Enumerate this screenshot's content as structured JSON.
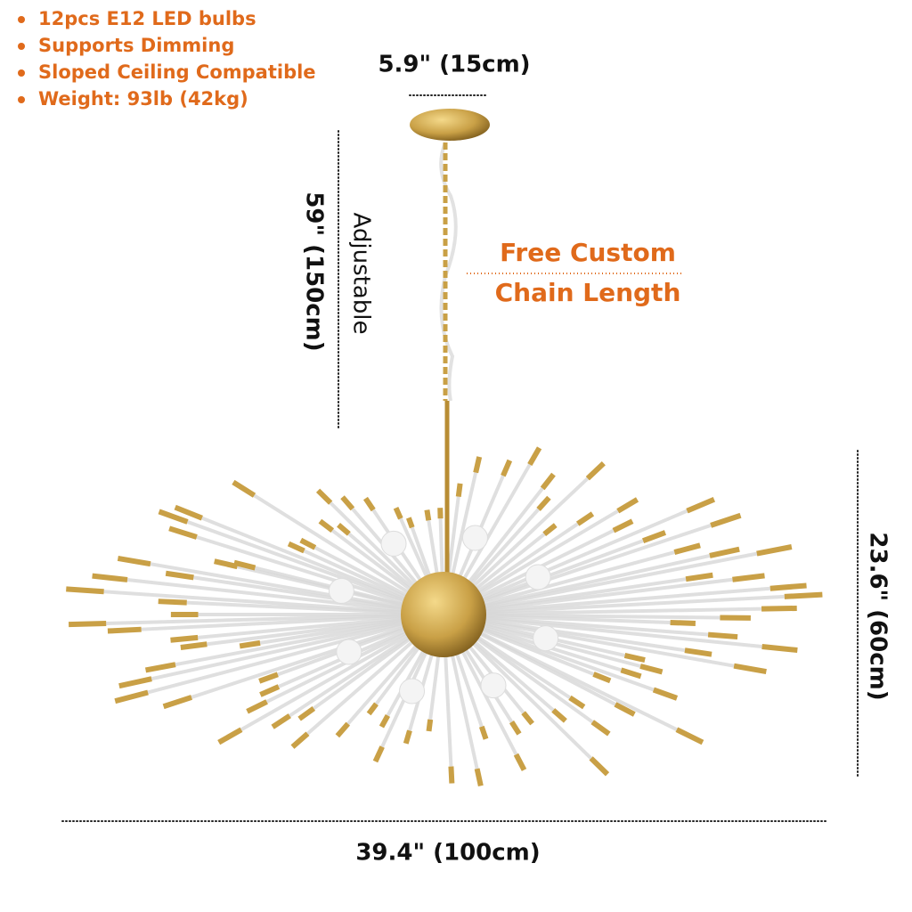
{
  "features": [
    "12pcs E12 LED bulbs",
    "Supports Dimming",
    "Sloped Ceiling Compatible",
    "Weight: 93lb (42kg)"
  ],
  "dimensions": {
    "canopy": "5.9\" (15cm)",
    "chain": "59\" (150cm)",
    "chain_note": "Adjustable",
    "height": "23.6\" (60cm)",
    "width": "39.4\" (100cm)"
  },
  "callout": {
    "line1": "Free Custom",
    "line2": "Chain Length"
  }
}
